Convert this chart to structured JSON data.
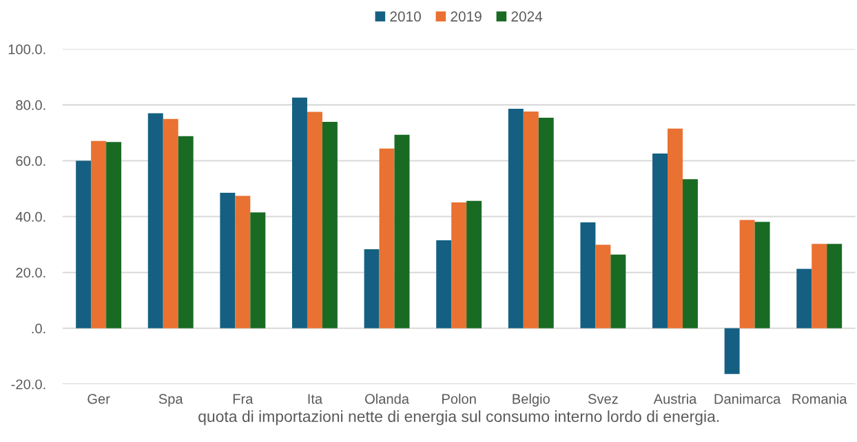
{
  "chart_data": {
    "type": "bar",
    "categories": [
      "Ger",
      "Spa",
      "Fra",
      "Ita",
      "Olanda",
      "Polon",
      "Belgio",
      "Svez",
      "Austria",
      "Danimarca",
      "Romania"
    ],
    "series": [
      {
        "name": "2010",
        "color": "#156082",
        "values": [
          60.0,
          77.0,
          48.5,
          82.6,
          28.3,
          31.5,
          78.6,
          37.9,
          62.6,
          -16.4,
          21.3
        ]
      },
      {
        "name": "2019",
        "color": "#e97132",
        "values": [
          67.1,
          75.0,
          47.4,
          77.5,
          64.4,
          45.1,
          77.6,
          29.9,
          71.5,
          38.8,
          30.2
        ]
      },
      {
        "name": "2024",
        "color": "#196b24",
        "values": [
          66.7,
          68.8,
          41.5,
          73.9,
          69.3,
          45.6,
          75.4,
          26.4,
          53.4,
          38.1,
          30.2
        ]
      }
    ],
    "xlabel": "quota di importazioni nette di energia sul consumo interno lordo di energia.",
    "ylim": [
      -20,
      100
    ],
    "yticks": [
      {
        "value": -20,
        "label": "-20.0."
      },
      {
        "value": 0,
        "label": ".0."
      },
      {
        "value": 20,
        "label": "20.0."
      },
      {
        "value": 40,
        "label": "40.0."
      },
      {
        "value": 60,
        "label": "60.0."
      },
      {
        "value": 80,
        "label": "80.0."
      },
      {
        "value": 100,
        "label": "100.0."
      }
    ],
    "grid": "y",
    "legend": "top"
  }
}
